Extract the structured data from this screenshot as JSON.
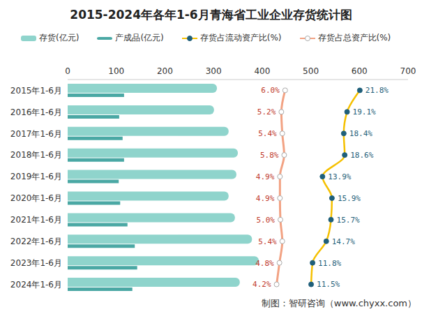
{
  "chart_data": {
    "type": "bar",
    "orientation": "horizontal",
    "title": "2015-2024年各年1-6月青海省工业企业存货统计图",
    "source": "制图：智研咨询（www.chyxx.com）",
    "categories": [
      "2015年1-6月",
      "2016年1-6月",
      "2017年1-6月",
      "2018年1-6月",
      "2019年1-6月",
      "2020年1-6月",
      "2021年1-6月",
      "2022年1-6月",
      "2023年1-6月",
      "2024年1-6月"
    ],
    "xlim": [
      0,
      700
    ],
    "xticks": [
      0,
      100,
      200,
      300,
      400,
      500,
      600,
      700
    ],
    "y2lim": [
      -40,
      32
    ],
    "grid": false,
    "legend": "top",
    "series": [
      {
        "name": "存货(亿元)",
        "type": "bar",
        "color": "#8fd4cc",
        "values": [
          307,
          301,
          331,
          350,
          347,
          331,
          344,
          379,
          393,
          354
        ]
      },
      {
        "name": "产成品(亿元)",
        "type": "bar",
        "color": "#4aa8a4",
        "values": [
          116,
          106,
          113,
          116,
          105,
          108,
          123,
          138,
          143,
          133
        ]
      },
      {
        "name": "存货占流动资产比(%)",
        "type": "line",
        "axis": "y2",
        "color": "#f5c000",
        "marker": "circle",
        "data_labels": true,
        "values": [
          21.8,
          19.1,
          18.4,
          18.6,
          13.9,
          15.9,
          15.7,
          14.7,
          11.8,
          11.5
        ],
        "value_labels": [
          "21.8%",
          "19.1%",
          "18.4%",
          "18.6%",
          "13.9%",
          "15.9%",
          "15.7%",
          "14.7%",
          "11.8%",
          "11.5%"
        ]
      },
      {
        "name": "存货占总资产比(%)",
        "type": "line",
        "axis": "y2",
        "color": "#f2a283",
        "marker": "circle",
        "data_labels": true,
        "values": [
          6.0,
          5.2,
          5.4,
          5.8,
          4.9,
          4.9,
          5.0,
          5.4,
          4.8,
          4.2
        ],
        "value_labels": [
          "6.0%",
          "5.2%",
          "5.4%",
          "5.8%",
          "4.9%",
          "4.9%",
          "5.0%",
          "5.4%",
          "4.8%",
          "4.2%"
        ]
      }
    ]
  }
}
